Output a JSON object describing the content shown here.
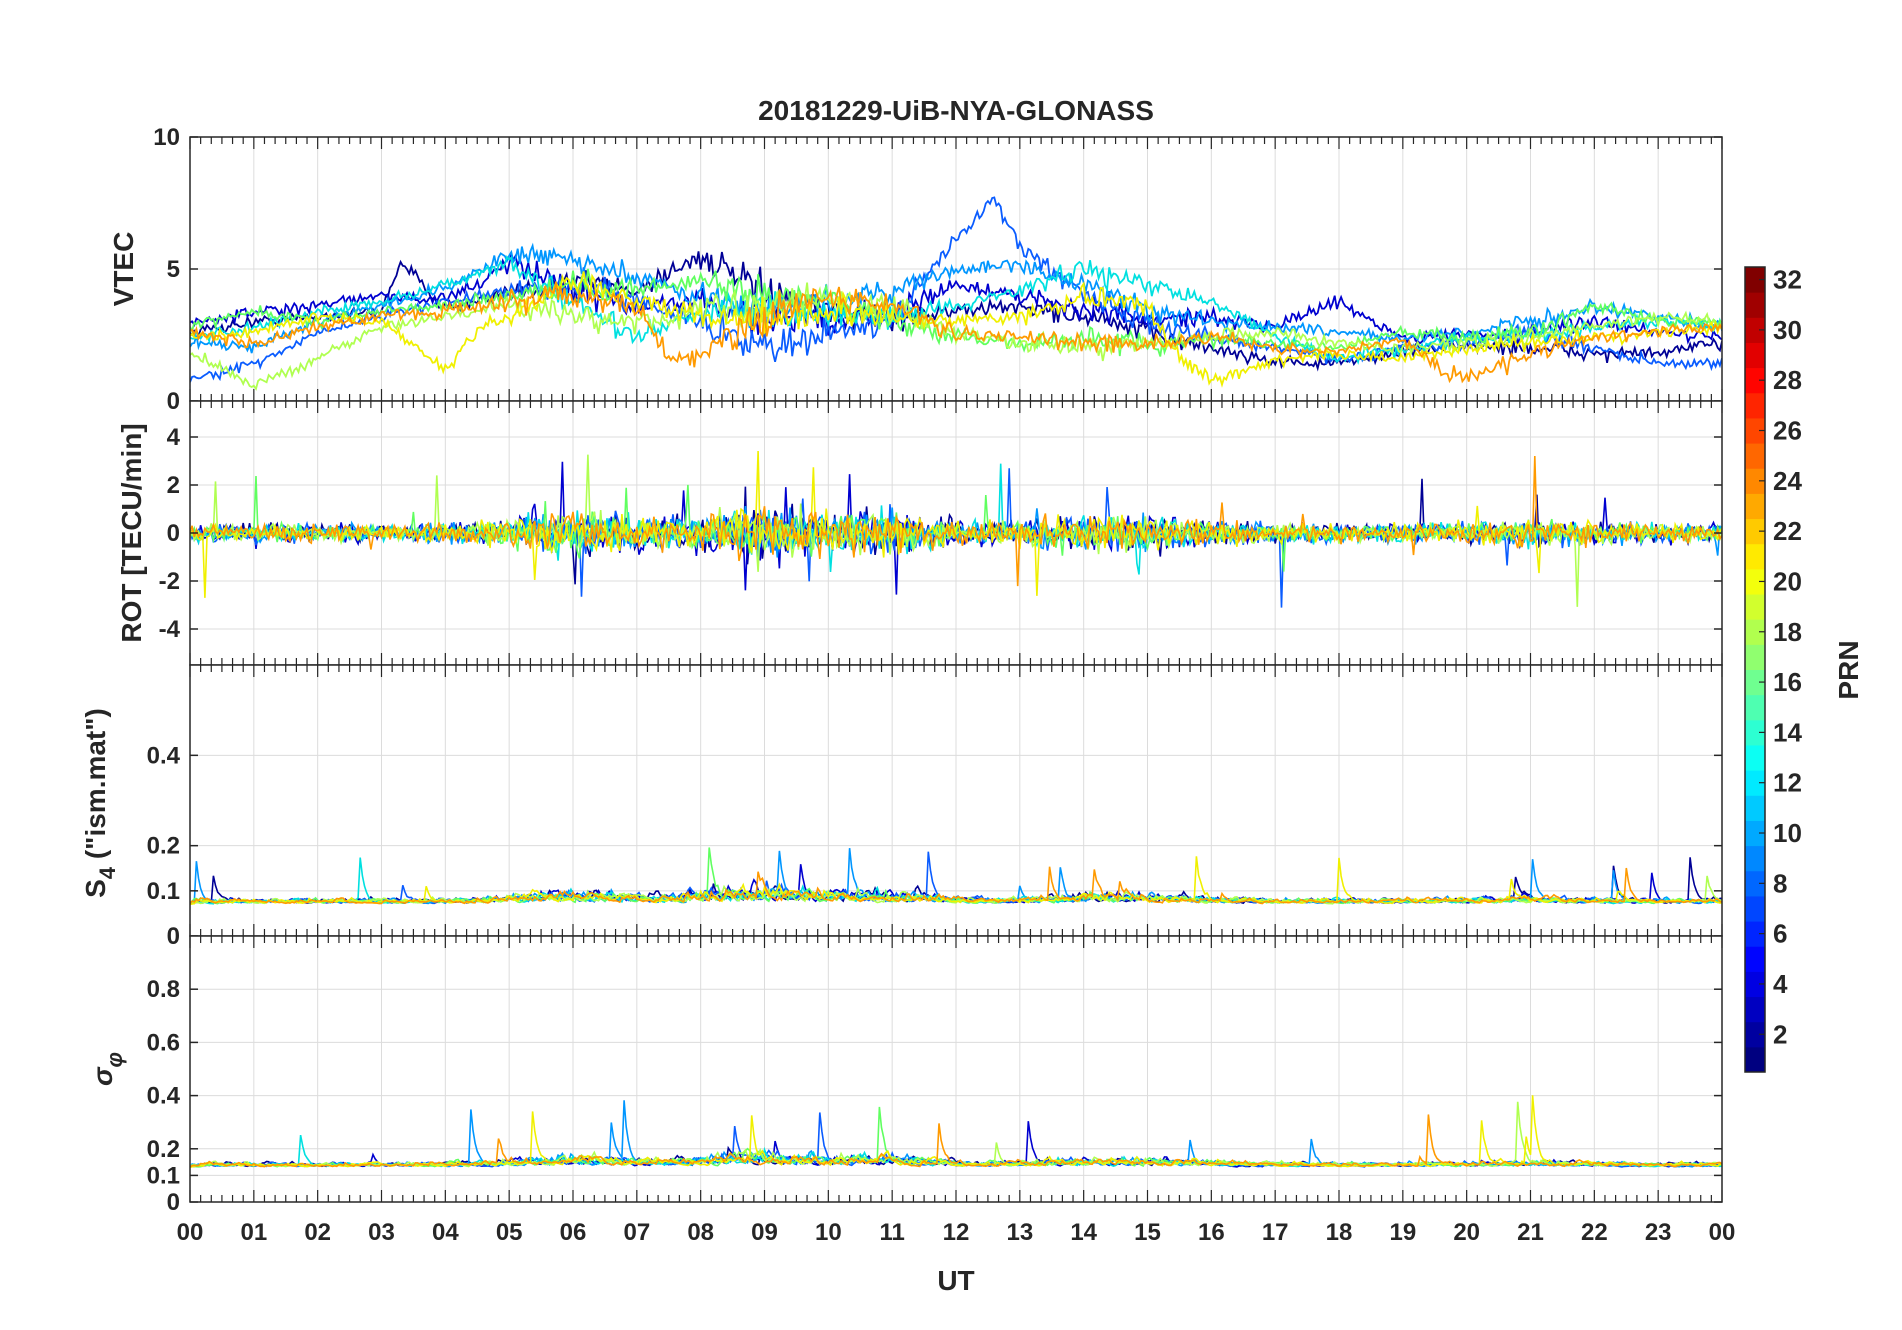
{
  "chart_data": {
    "type": "line",
    "title": "20181229-UiB-NYA-GLONASS",
    "xlabel": "UT",
    "x_ticks": [
      "00",
      "01",
      "02",
      "03",
      "04",
      "05",
      "06",
      "07",
      "08",
      "09",
      "10",
      "11",
      "12",
      "13",
      "14",
      "15",
      "16",
      "17",
      "18",
      "19",
      "20",
      "21",
      "22",
      "23",
      "00"
    ],
    "xlim": [
      0,
      24
    ],
    "panels": [
      {
        "id": "vtec",
        "ylabel": "VTEC",
        "ylim": [
          0,
          10
        ],
        "yticks": [
          0,
          5,
          10
        ],
        "yticklabels": [
          "0",
          "5",
          "10"
        ],
        "baseline": 3.0,
        "spread": 1.0
      },
      {
        "id": "rot",
        "ylabel": "ROT [TECU/min]",
        "ylim": [
          -5.5,
          5.5
        ],
        "yticks": [
          -4,
          -2,
          0,
          2,
          4
        ],
        "yticklabels": [
          "-4",
          "-2",
          "0",
          "2",
          "4"
        ],
        "baseline": 0.0,
        "spread": 0.4
      },
      {
        "id": "s4",
        "ylabel_main": "S",
        "ylabel_sub": "4",
        "ylabel_rest": " (\"ism.mat\")",
        "ylim": [
          0,
          0.6
        ],
        "yticks": [
          0,
          0.1,
          0.2,
          0.4
        ],
        "yticklabels": [
          "0",
          "0.1",
          "0.2",
          "0.4"
        ],
        "baseline": 0.07,
        "spread": 0.02
      },
      {
        "id": "sigma_phi",
        "ylabel_main": "σ",
        "ylabel_sub": "φ",
        "ylim": [
          0,
          1
        ],
        "yticks": [
          0,
          0.1,
          0.2,
          0.4,
          0.6,
          0.8
        ],
        "yticklabels": [
          "0",
          "0.1",
          "0.2",
          "0.4",
          "0.6",
          "0.8"
        ],
        "baseline": 0.13,
        "spread": 0.03
      }
    ],
    "colorbar": {
      "label": "PRN",
      "range": [
        1,
        32
      ],
      "ticks": [
        2,
        4,
        6,
        8,
        10,
        12,
        14,
        16,
        18,
        20,
        22,
        24,
        26,
        28,
        30,
        32
      ],
      "colormap": "jet"
    },
    "series": [
      {
        "prn": 1,
        "color": "#000096",
        "vtec": [
          [
            0.0,
            2.6
          ],
          [
            1.0,
            3.0
          ],
          [
            2.0,
            3.2
          ],
          [
            3.0,
            3.4
          ],
          [
            3.3,
            5.3
          ],
          [
            4.0,
            3.5
          ],
          [
            5.0,
            4.0
          ],
          [
            6.0,
            4.6
          ],
          [
            7.0,
            4.2
          ],
          [
            8.0,
            5.5
          ],
          [
            9.0,
            4.0
          ],
          [
            10.0,
            3.4
          ],
          [
            11.0,
            3.2
          ],
          [
            12.0,
            3.4
          ],
          [
            13.0,
            3.6
          ],
          [
            14.0,
            3.2
          ],
          [
            15.0,
            2.6
          ],
          [
            16.0,
            2.0
          ],
          [
            17.0,
            1.5
          ],
          [
            18.0,
            1.4
          ],
          [
            19.0,
            1.9
          ],
          [
            20.0,
            2.1
          ],
          [
            21.0,
            2.0
          ],
          [
            22.0,
            1.8
          ],
          [
            23.0,
            1.8
          ],
          [
            24.0,
            2.2
          ]
        ]
      },
      {
        "prn": 3,
        "color": "#0000d0",
        "vtec": [
          [
            0.0,
            3.0
          ],
          [
            1.0,
            3.3
          ],
          [
            2.0,
            3.6
          ],
          [
            3.0,
            4.0
          ],
          [
            4.0,
            3.8
          ],
          [
            5.0,
            5.2
          ],
          [
            6.0,
            4.2
          ],
          [
            7.0,
            3.6
          ],
          [
            8.0,
            3.8
          ],
          [
            9.0,
            3.2
          ],
          [
            10.0,
            3.0
          ],
          [
            11.0,
            3.4
          ],
          [
            12.0,
            4.4
          ],
          [
            13.0,
            4.0
          ],
          [
            14.0,
            3.5
          ],
          [
            15.0,
            3.0
          ],
          [
            16.0,
            3.2
          ],
          [
            17.0,
            2.8
          ],
          [
            18.0,
            3.8
          ],
          [
            19.0,
            2.4
          ],
          [
            20.0,
            2.5
          ],
          [
            21.0,
            2.6
          ],
          [
            22.0,
            3.0
          ],
          [
            23.0,
            2.6
          ],
          [
            24.0,
            2.4
          ]
        ]
      },
      {
        "prn": 7,
        "color": "#0a5cff",
        "vtec": [
          [
            0.0,
            0.8
          ],
          [
            1.0,
            1.4
          ],
          [
            2.0,
            2.6
          ],
          [
            3.0,
            3.2
          ],
          [
            4.0,
            3.8
          ],
          [
            5.0,
            4.2
          ],
          [
            6.0,
            4.5
          ],
          [
            7.0,
            3.8
          ],
          [
            8.0,
            3.0
          ],
          [
            9.0,
            2.0
          ],
          [
            10.0,
            2.6
          ],
          [
            11.0,
            3.0
          ],
          [
            12.0,
            6.2
          ],
          [
            12.6,
            7.6
          ],
          [
            13.0,
            6.0
          ],
          [
            14.0,
            4.0
          ],
          [
            15.0,
            3.0
          ],
          [
            16.0,
            2.4
          ],
          [
            17.0,
            2.0
          ],
          [
            18.0,
            1.6
          ],
          [
            19.0,
            2.0
          ],
          [
            20.0,
            2.2
          ],
          [
            21.0,
            2.6
          ],
          [
            22.0,
            2.0
          ],
          [
            23.0,
            1.4
          ],
          [
            24.0,
            1.5
          ]
        ]
      },
      {
        "prn": 10,
        "color": "#0096ff",
        "vtec": [
          [
            0.0,
            2.2
          ],
          [
            1.0,
            2.0
          ],
          [
            2.0,
            3.0
          ],
          [
            3.0,
            3.6
          ],
          [
            4.0,
            4.2
          ],
          [
            5.0,
            5.6
          ],
          [
            6.0,
            5.4
          ],
          [
            7.0,
            4.6
          ],
          [
            8.0,
            4.0
          ],
          [
            9.0,
            3.4
          ],
          [
            10.0,
            3.6
          ],
          [
            11.0,
            4.2
          ],
          [
            12.0,
            5.0
          ],
          [
            13.0,
            5.2
          ],
          [
            14.0,
            4.4
          ],
          [
            15.0,
            3.4
          ],
          [
            16.0,
            3.0
          ],
          [
            17.0,
            2.8
          ],
          [
            18.0,
            2.6
          ],
          [
            19.0,
            2.4
          ],
          [
            20.0,
            2.6
          ],
          [
            21.0,
            3.0
          ],
          [
            22.0,
            3.6
          ],
          [
            23.0,
            3.2
          ],
          [
            24.0,
            2.8
          ]
        ]
      },
      {
        "prn": 13,
        "color": "#00e0e0",
        "vtec": [
          [
            0.0,
            2.4
          ],
          [
            1.0,
            2.8
          ],
          [
            2.0,
            3.4
          ],
          [
            3.0,
            3.8
          ],
          [
            4.0,
            4.4
          ],
          [
            5.0,
            5.2
          ],
          [
            6.0,
            3.8
          ],
          [
            7.0,
            2.4
          ],
          [
            8.0,
            3.4
          ],
          [
            9.0,
            3.6
          ],
          [
            10.0,
            3.2
          ],
          [
            11.0,
            3.2
          ],
          [
            12.0,
            3.6
          ],
          [
            13.0,
            4.2
          ],
          [
            14.0,
            5.0
          ],
          [
            15.0,
            4.4
          ],
          [
            16.0,
            3.8
          ],
          [
            17.0,
            2.4
          ],
          [
            18.0,
            1.6
          ],
          [
            19.0,
            2.0
          ],
          [
            20.0,
            2.4
          ],
          [
            21.0,
            2.4
          ],
          [
            22.0,
            2.8
          ],
          [
            23.0,
            3.0
          ],
          [
            24.0,
            2.8
          ]
        ]
      },
      {
        "prn": 16,
        "color": "#60ff60",
        "vtec": [
          [
            0.0,
            2.8
          ],
          [
            1.0,
            3.4
          ],
          [
            2.0,
            3.0
          ],
          [
            3.0,
            3.4
          ],
          [
            4.0,
            3.6
          ],
          [
            5.0,
            4.0
          ],
          [
            6.0,
            4.4
          ],
          [
            7.0,
            4.2
          ],
          [
            8.0,
            4.6
          ],
          [
            9.0,
            4.0
          ],
          [
            10.0,
            3.8
          ],
          [
            11.0,
            3.0
          ],
          [
            12.0,
            2.4
          ],
          [
            13.0,
            2.2
          ],
          [
            14.0,
            2.4
          ],
          [
            15.0,
            2.2
          ],
          [
            16.0,
            2.4
          ],
          [
            17.0,
            2.2
          ],
          [
            18.0,
            2.0
          ],
          [
            19.0,
            2.6
          ],
          [
            20.0,
            2.4
          ],
          [
            21.0,
            2.6
          ],
          [
            22.0,
            3.6
          ],
          [
            23.0,
            3.0
          ],
          [
            24.0,
            3.0
          ]
        ]
      },
      {
        "prn": 18,
        "color": "#b0ff50",
        "vtec": [
          [
            0.0,
            1.8
          ],
          [
            1.0,
            0.6
          ],
          [
            2.0,
            1.6
          ],
          [
            3.0,
            2.8
          ],
          [
            4.0,
            3.2
          ],
          [
            5.0,
            3.6
          ],
          [
            6.0,
            3.2
          ],
          [
            7.0,
            3.0
          ],
          [
            8.0,
            3.4
          ],
          [
            9.0,
            3.6
          ],
          [
            10.0,
            4.0
          ],
          [
            11.0,
            3.4
          ],
          [
            12.0,
            2.6
          ],
          [
            13.0,
            2.2
          ],
          [
            14.0,
            2.0
          ],
          [
            15.0,
            2.2
          ],
          [
            16.0,
            2.4
          ],
          [
            17.0,
            2.6
          ],
          [
            18.0,
            2.2
          ],
          [
            19.0,
            2.0
          ],
          [
            20.0,
            2.2
          ],
          [
            21.0,
            2.4
          ],
          [
            22.0,
            2.8
          ],
          [
            23.0,
            3.2
          ],
          [
            24.0,
            3.0
          ]
        ]
      },
      {
        "prn": 20,
        "color": "#f0f000",
        "vtec": [
          [
            0.0,
            2.4
          ],
          [
            1.0,
            2.6
          ],
          [
            2.0,
            3.2
          ],
          [
            3.0,
            3.0
          ],
          [
            4.0,
            1.2
          ],
          [
            4.5,
            2.6
          ],
          [
            5.0,
            3.2
          ],
          [
            6.0,
            4.6
          ],
          [
            7.0,
            3.8
          ],
          [
            8.0,
            3.2
          ],
          [
            9.0,
            3.0
          ],
          [
            10.0,
            3.6
          ],
          [
            11.0,
            3.2
          ],
          [
            12.0,
            3.0
          ],
          [
            13.0,
            3.2
          ],
          [
            14.0,
            4.0
          ],
          [
            15.0,
            3.6
          ],
          [
            15.5,
            1.6
          ],
          [
            16.0,
            0.8
          ],
          [
            17.0,
            1.6
          ],
          [
            18.0,
            1.8
          ],
          [
            19.0,
            1.6
          ],
          [
            20.0,
            2.0
          ],
          [
            21.0,
            2.2
          ],
          [
            22.0,
            2.4
          ],
          [
            23.0,
            2.6
          ],
          [
            24.0,
            2.8
          ]
        ]
      },
      {
        "prn": 23,
        "color": "#ff9a00",
        "vtec": [
          [
            0.0,
            2.6
          ],
          [
            1.0,
            2.2
          ],
          [
            2.0,
            2.8
          ],
          [
            3.0,
            3.2
          ],
          [
            4.0,
            3.4
          ],
          [
            5.0,
            3.8
          ],
          [
            6.0,
            4.0
          ],
          [
            7.0,
            3.6
          ],
          [
            7.5,
            1.6
          ],
          [
            8.0,
            1.8
          ],
          [
            9.0,
            3.2
          ],
          [
            10.0,
            4.0
          ],
          [
            11.0,
            3.6
          ],
          [
            12.0,
            2.6
          ],
          [
            13.0,
            2.4
          ],
          [
            14.0,
            2.2
          ],
          [
            15.0,
            2.2
          ],
          [
            16.0,
            2.4
          ],
          [
            17.0,
            2.0
          ],
          [
            18.0,
            1.8
          ],
          [
            19.0,
            2.4
          ],
          [
            19.6,
            1.2
          ],
          [
            20.0,
            0.9
          ],
          [
            21.0,
            1.8
          ],
          [
            22.0,
            2.4
          ],
          [
            23.0,
            2.6
          ],
          [
            24.0,
            2.8
          ]
        ]
      }
    ]
  }
}
